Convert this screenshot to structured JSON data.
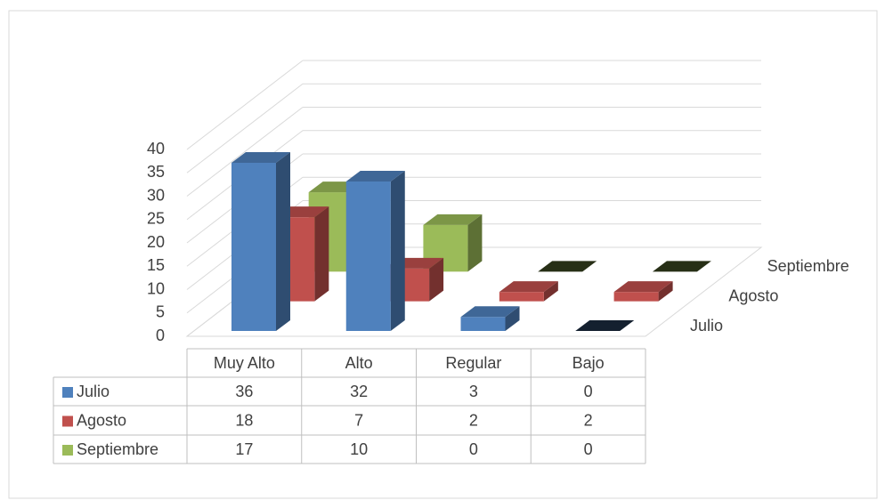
{
  "chart_data": {
    "type": "bar3d",
    "categories": [
      "Muy Alto",
      "Alto",
      "Regular",
      "Bajo"
    ],
    "series": [
      {
        "name": "Julio",
        "color": "#4f81bd",
        "values": [
          36,
          32,
          3,
          0
        ]
      },
      {
        "name": "Agosto",
        "color": "#c0504d",
        "values": [
          18,
          7,
          2,
          2
        ]
      },
      {
        "name": "Septiembre",
        "color": "#9bbb59",
        "values": [
          17,
          10,
          0,
          0
        ]
      }
    ],
    "ylim": [
      0,
      40
    ],
    "yticks": [
      0,
      5,
      10,
      15,
      20,
      25,
      30,
      35,
      40
    ],
    "grid": true
  }
}
